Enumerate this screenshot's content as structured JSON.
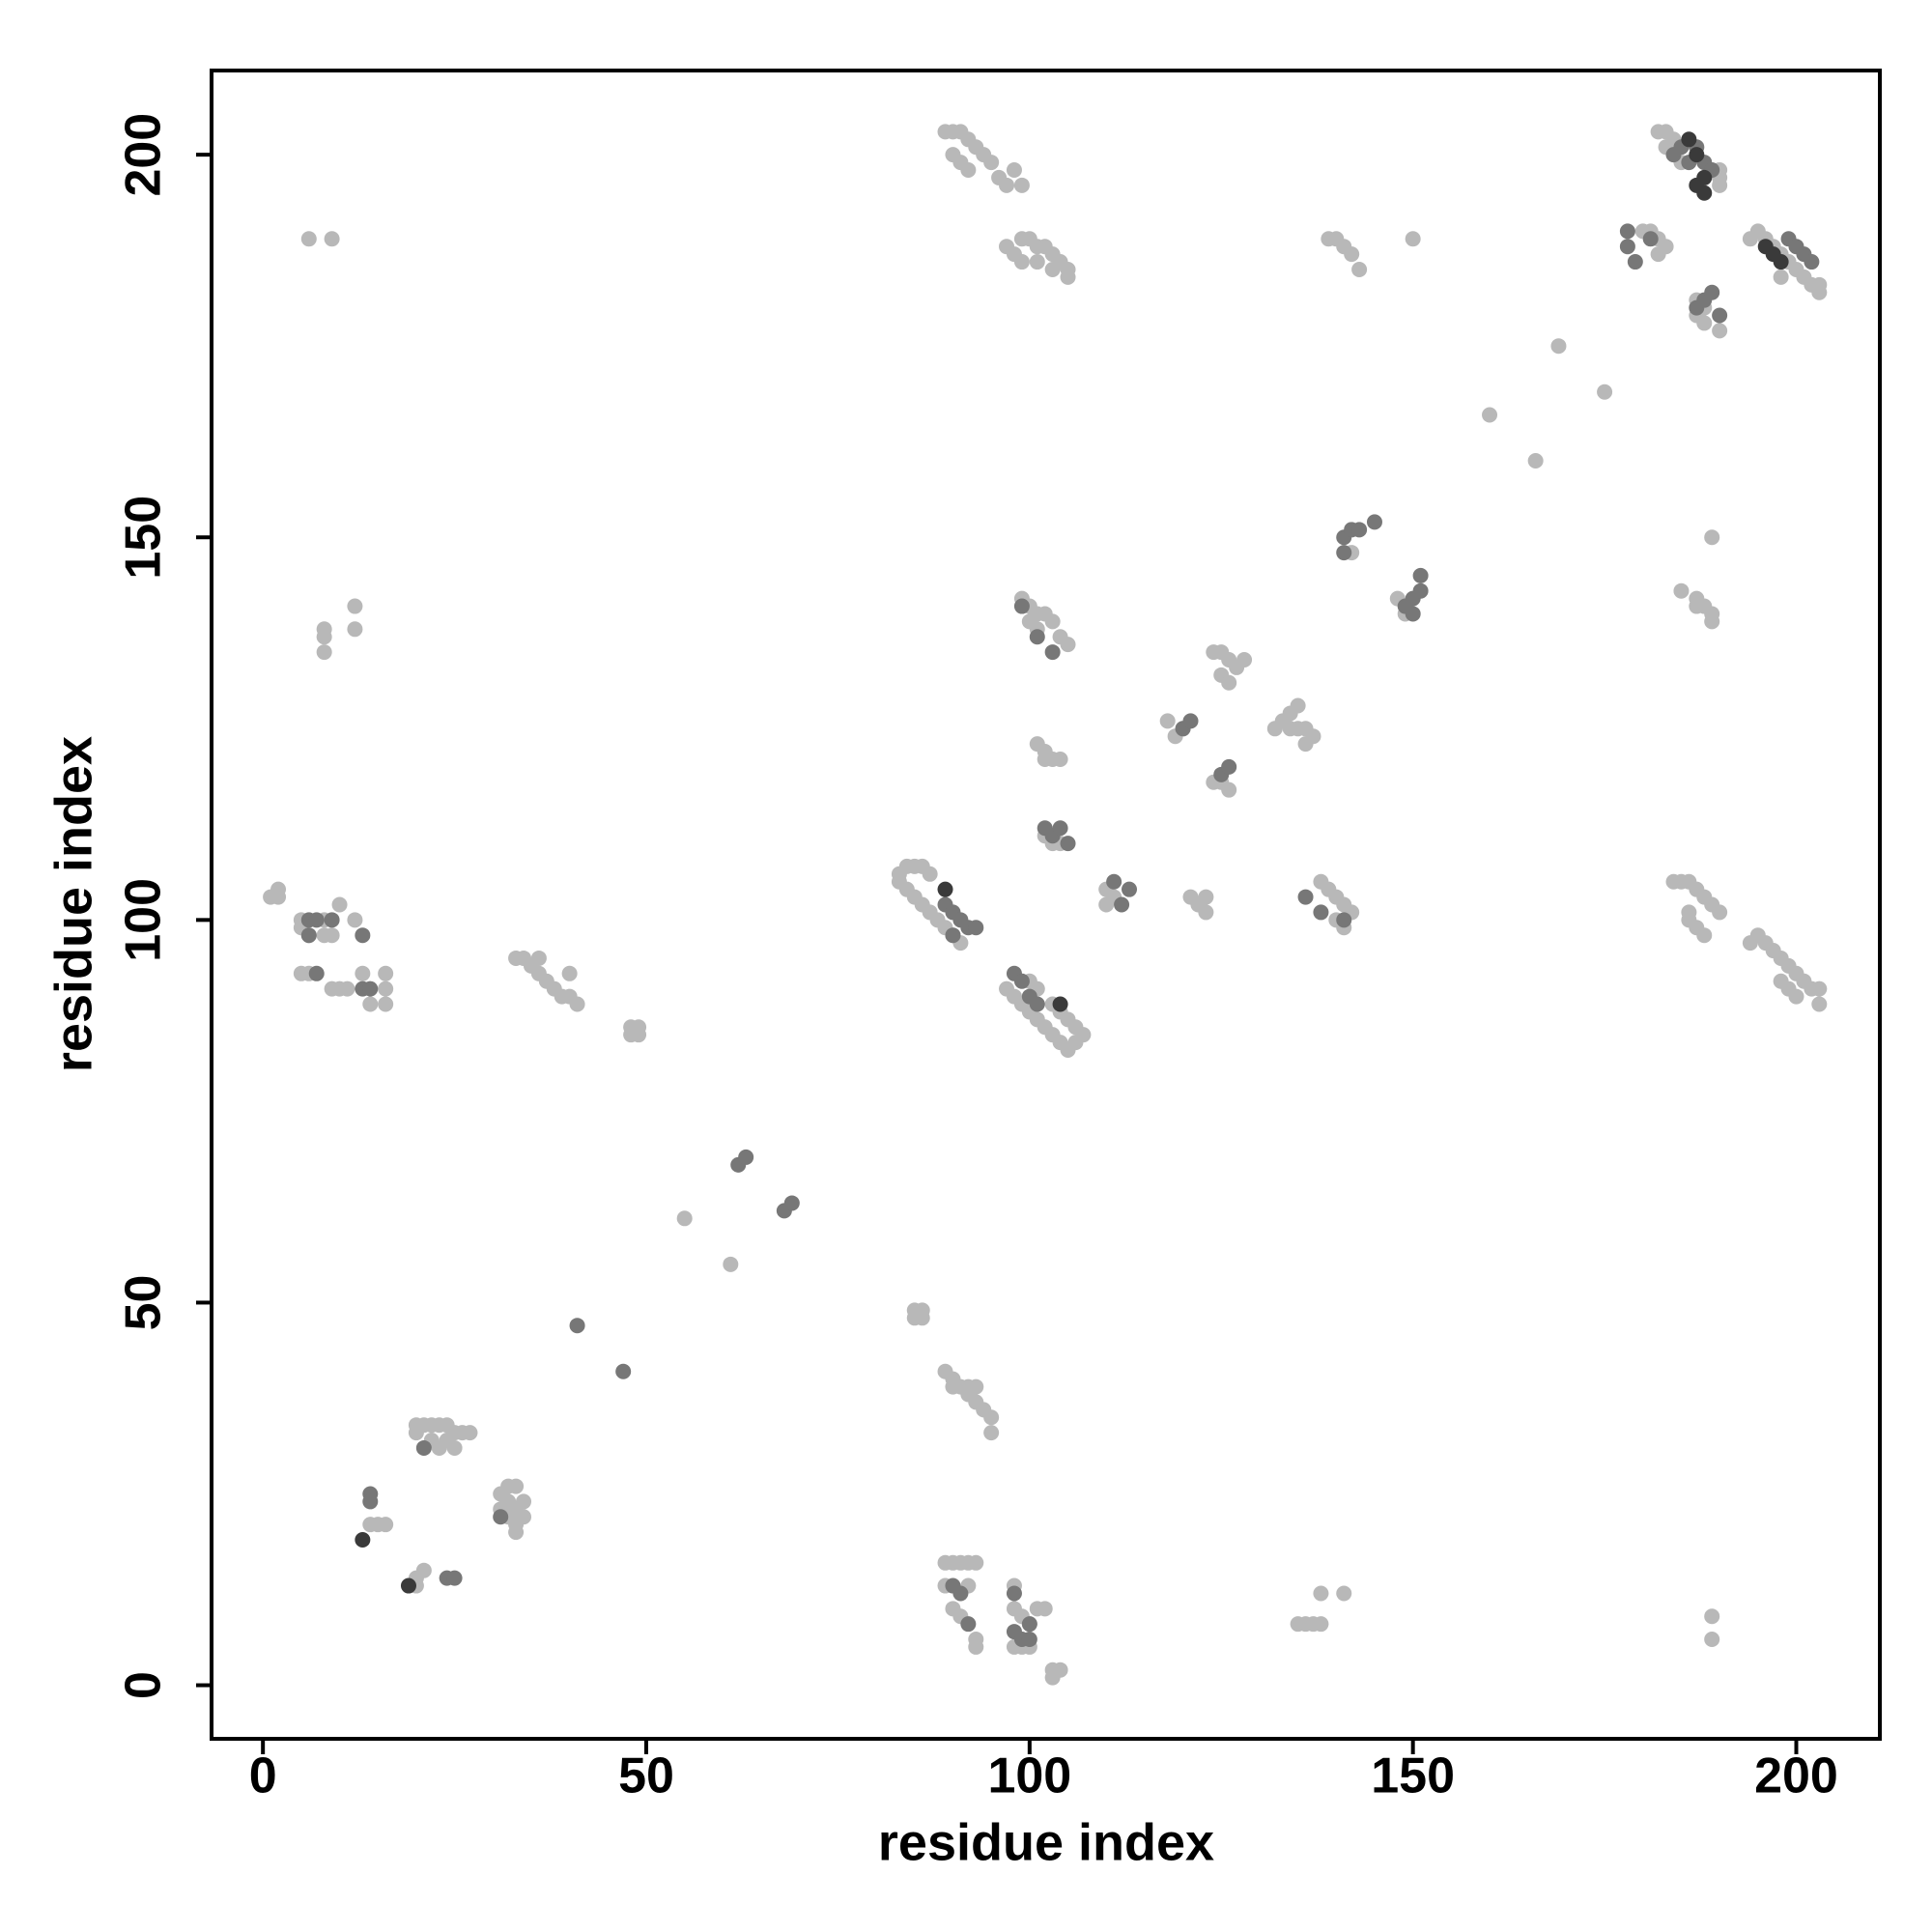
{
  "chart_data": {
    "type": "scatter",
    "x_label": "residue index",
    "y_label": "residue index",
    "xlim": [
      -6.7,
      210.9
    ],
    "ylim": [
      -7,
      211
    ],
    "xticks": [
      0,
      50,
      100,
      150,
      200
    ],
    "yticks": [
      0,
      50,
      100,
      150,
      200
    ],
    "series": [
      {
        "color": "#b8b8b8",
        "x": [
          6,
          9,
          1,
          2,
          2,
          5,
          5,
          6,
          8,
          8,
          9,
          10,
          12,
          5,
          6,
          9,
          10,
          11,
          13,
          16,
          16,
          16,
          14,
          8,
          8,
          8,
          12,
          12,
          33,
          34,
          35,
          36,
          37,
          38,
          39,
          40,
          41,
          40,
          36,
          48,
          49,
          48,
          49,
          55,
          61,
          85,
          86,
          85,
          86,
          89,
          90,
          91,
          92,
          93,
          94,
          95,
          95,
          92,
          93,
          90,
          20,
          21,
          22,
          23,
          24,
          25,
          26,
          27,
          20,
          22,
          23,
          24,
          25,
          31,
          32,
          33,
          34,
          33,
          32,
          31,
          33,
          34,
          32,
          33,
          14,
          15,
          16,
          20,
          21,
          20,
          89,
          90,
          91,
          92,
          93,
          89,
          90,
          91,
          92,
          93,
          93,
          98,
          98,
          99,
          100,
          98,
          99,
          100,
          101,
          102,
          103,
          103,
          104,
          135,
          136,
          137,
          138,
          138,
          141,
          189,
          189,
          89,
          90,
          91,
          92,
          93,
          90,
          91,
          92,
          94,
          95,
          96,
          98,
          99,
          97,
          97,
          98,
          99,
          100,
          101,
          102,
          103,
          104,
          105,
          105,
          99,
          101,
          103,
          139,
          140,
          141,
          142,
          143,
          150,
          160,
          166,
          169,
          175,
          99,
          100,
          101,
          102,
          103,
          104,
          105,
          100,
          101,
          101,
          102,
          103,
          104,
          102,
          102,
          103,
          104,
          110,
          111,
          110,
          118,
          119,
          120,
          121,
          122,
          123,
          123,
          124,
          125,
          126,
          127,
          128,
          125,
          126,
          124,
          125,
          126,
          132,
          133,
          134,
          135,
          136,
          137,
          136,
          134,
          135,
          142,
          148,
          149,
          149,
          138,
          139,
          140,
          141,
          142,
          140,
          141,
          184,
          185,
          186,
          187,
          188,
          189,
          190,
          186,
          187,
          188,
          186,
          185,
          187,
          188,
          189,
          189,
          189,
          187,
          180,
          181,
          182,
          183,
          182,
          182,
          183,
          184,
          183,
          184,
          185,
          190,
          190,
          190,
          187,
          188,
          187,
          188,
          190,
          194,
          195,
          196,
          197,
          198,
          199,
          200,
          201,
          202,
          203,
          203,
          198,
          194,
          195,
          196,
          197,
          198,
          199,
          200,
          201,
          202,
          203,
          203,
          198,
          199,
          200,
          83,
          84,
          85,
          86,
          87,
          83,
          84,
          85,
          86,
          87,
          88,
          89,
          90,
          91,
          97,
          98,
          99,
          100,
          101,
          102,
          103,
          104,
          105,
          106,
          107,
          106,
          105,
          104,
          103,
          100,
          101
        ],
        "values": [
          189,
          189,
          103,
          104,
          103,
          100,
          99,
          98,
          100,
          98,
          98,
          102,
          100,
          93,
          93,
          91,
          91,
          91,
          93,
          93,
          91,
          89,
          89,
          138,
          137,
          135,
          141,
          138,
          95,
          95,
          94,
          93,
          92,
          91,
          90,
          90,
          89,
          93,
          95,
          86,
          86,
          85,
          85,
          61,
          55,
          49,
          49,
          48,
          48,
          41,
          40,
          39,
          38,
          37,
          36,
          35,
          33,
          39,
          39,
          39,
          34,
          34,
          34,
          34,
          34,
          33,
          33,
          33,
          33,
          32,
          31,
          32,
          31,
          25,
          24,
          23,
          22,
          21,
          22,
          23,
          26,
          24,
          26,
          20,
          21,
          21,
          21,
          14,
          15,
          13,
          16,
          16,
          16,
          16,
          16,
          13,
          10,
          9,
          13,
          6,
          5,
          13,
          10,
          9,
          8,
          5,
          5,
          5,
          10,
          10,
          2,
          1,
          2,
          8,
          8,
          8,
          8,
          12,
          12,
          9,
          6,
          203,
          203,
          203,
          202,
          201,
          200,
          199,
          198,
          200,
          199,
          197,
          198,
          196,
          196,
          188,
          187,
          189,
          189,
          188,
          188,
          187,
          186,
          185,
          184,
          186,
          186,
          185,
          189,
          189,
          188,
          187,
          185,
          189,
          166,
          160,
          175,
          169,
          142,
          141,
          140,
          140,
          139,
          137,
          136,
          139,
          138,
          123,
          122,
          121,
          121,
          121,
          111,
          110,
          110,
          104,
          103,
          102,
          126,
          124,
          125,
          103,
          102,
          101,
          103,
          135,
          135,
          134,
          133,
          134,
          132,
          131,
          118,
          118,
          117,
          125,
          126,
          127,
          128,
          125,
          124,
          123,
          125,
          125,
          148,
          142,
          141,
          140,
          105,
          104,
          103,
          102,
          101,
          100,
          99,
          105,
          105,
          105,
          104,
          103,
          102,
          101,
          101,
          99,
          98,
          100,
          143,
          142,
          141,
          140,
          139,
          150,
          141,
          190,
          190,
          189,
          188,
          187,
          203,
          203,
          202,
          201,
          200,
          199,
          198,
          197,
          196,
          181,
          180,
          179,
          178,
          177,
          189,
          190,
          189,
          188,
          187,
          186,
          185,
          184,
          183,
          183,
          182,
          184,
          97,
          98,
          97,
          96,
          95,
          94,
          93,
          92,
          91,
          91,
          89,
          92,
          91,
          90,
          106,
          107,
          107,
          107,
          106,
          105,
          104,
          103,
          102,
          101,
          100,
          99,
          98,
          97,
          91,
          90,
          89,
          88,
          87,
          86,
          85,
          84,
          83,
          84,
          85,
          86,
          87,
          88,
          89,
          92,
          91
        ]
      },
      {
        "color": "#777777",
        "x": [
          6,
          7,
          6,
          9,
          13,
          7,
          13,
          14,
          14,
          14,
          21,
          24,
          25,
          31,
          41,
          47,
          62,
          63,
          68,
          69,
          90,
          91,
          92,
          98,
          99,
          100,
          100,
          98,
          99,
          101,
          103,
          102,
          103,
          104,
          105,
          111,
          112,
          113,
          120,
          121,
          125,
          126,
          141,
          142,
          143,
          145,
          141,
          149,
          150,
          151,
          151,
          150,
          136,
          138,
          141,
          178,
          178,
          179,
          181,
          184,
          185,
          186,
          187,
          188,
          189,
          187,
          188,
          189,
          190,
          199,
          200,
          201,
          202,
          89,
          90,
          91,
          92,
          93,
          90,
          98,
          99,
          100,
          101
        ],
        "values": [
          100,
          100,
          98,
          100,
          98,
          93,
          91,
          91,
          25,
          24,
          31,
          14,
          14,
          22,
          47,
          41,
          68,
          69,
          62,
          63,
          13,
          12,
          8,
          7,
          6,
          6,
          8,
          12,
          141,
          137,
          135,
          112,
          111,
          112,
          110,
          105,
          102,
          104,
          125,
          126,
          119,
          120,
          150,
          151,
          151,
          152,
          148,
          141,
          142,
          143,
          145,
          140,
          103,
          101,
          100,
          190,
          188,
          186,
          189,
          200,
          201,
          199,
          201,
          199,
          198,
          180,
          181,
          182,
          179,
          189,
          188,
          187,
          186,
          102,
          101,
          100,
          99,
          99,
          98,
          93,
          92,
          90,
          89
        ]
      },
      {
        "color": "#3a3a3a",
        "x": [
          13,
          19,
          89,
          104,
          186,
          187,
          188,
          187,
          188,
          196,
          197,
          198
        ],
        "values": [
          19,
          13,
          104,
          89,
          202,
          200,
          197,
          196,
          195,
          188,
          187,
          186
        ]
      }
    ]
  }
}
